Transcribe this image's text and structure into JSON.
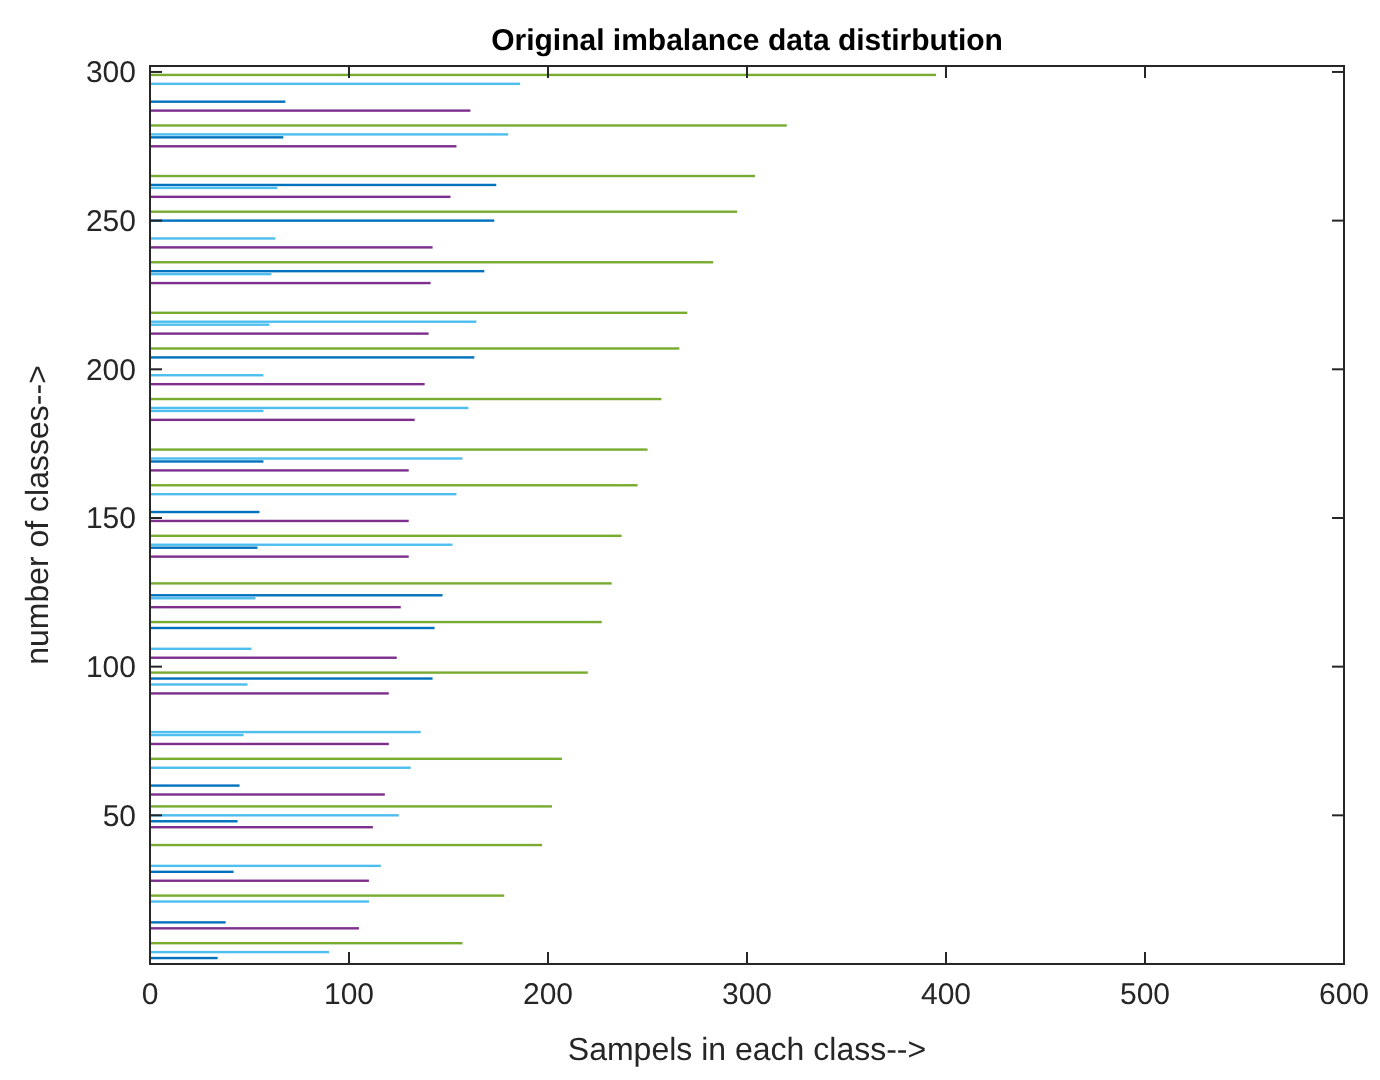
{
  "chart_data": {
    "type": "bar",
    "orientation": "horizontal",
    "title": "Original imbalance data distirbution",
    "xlabel": "Sampels in each class-->",
    "ylabel": "number of classes-->",
    "x": [
      299,
      296,
      290,
      287,
      282,
      279,
      278,
      275,
      265,
      262,
      261,
      258,
      253,
      250,
      244,
      241,
      236,
      233,
      232,
      229,
      219,
      216,
      215,
      212,
      207,
      204,
      198,
      195,
      190,
      187,
      186,
      183,
      173,
      170,
      169,
      166,
      161,
      158,
      152,
      149,
      144,
      141,
      140,
      137,
      128,
      124,
      123,
      120,
      115,
      113,
      106,
      103,
      98,
      96,
      94,
      91,
      78,
      77,
      74,
      69,
      66,
      60,
      57,
      53,
      50,
      48,
      46,
      40,
      33,
      31,
      28,
      23,
      21,
      14,
      12,
      7,
      4,
      2
    ],
    "values": [
      395,
      186,
      68,
      161,
      320,
      180,
      67,
      154,
      304,
      174,
      64,
      151,
      295,
      173,
      63,
      142,
      283,
      168,
      61,
      141,
      270,
      164,
      60,
      140,
      266,
      163,
      57,
      138,
      257,
      160,
      57,
      133,
      250,
      157,
      57,
      130,
      245,
      154,
      55,
      130,
      237,
      152,
      54,
      130,
      232,
      147,
      53,
      126,
      227,
      143,
      51,
      124,
      220,
      142,
      49,
      120,
      136,
      47,
      120,
      207,
      131,
      45,
      118,
      202,
      125,
      44,
      112,
      197,
      116,
      42,
      110,
      178,
      110,
      38,
      105,
      157,
      90,
      34
    ],
    "colors": [
      "#77ac30",
      "#4dbeee",
      "#0072bd",
      "#7e2f8e",
      "#77ac30",
      "#4dbeee",
      "#0072bd",
      "#7e2f8e",
      "#77ac30",
      "#0072bd",
      "#4dbeee",
      "#7e2f8e",
      "#77ac30",
      "#0072bd",
      "#4dbeee",
      "#7e2f8e",
      "#77ac30",
      "#0072bd",
      "#4dbeee",
      "#7e2f8e",
      "#77ac30",
      "#4dbeee",
      "#4dbeee",
      "#7e2f8e",
      "#77ac30",
      "#0072bd",
      "#4dbeee",
      "#7e2f8e",
      "#77ac30",
      "#4dbeee",
      "#4dbeee",
      "#7e2f8e",
      "#77ac30",
      "#4dbeee",
      "#0072bd",
      "#7e2f8e",
      "#77ac30",
      "#4dbeee",
      "#0072bd",
      "#7e2f8e",
      "#77ac30",
      "#4dbeee",
      "#0072bd",
      "#7e2f8e",
      "#77ac30",
      "#0072bd",
      "#4dbeee",
      "#7e2f8e",
      "#77ac30",
      "#0072bd",
      "#4dbeee",
      "#7e2f8e",
      "#77ac30",
      "#0072bd",
      "#4dbeee",
      "#7e2f8e",
      "#4dbeee",
      "#4dbeee",
      "#7e2f8e",
      "#77ac30",
      "#4dbeee",
      "#0072bd",
      "#7e2f8e",
      "#77ac30",
      "#4dbeee",
      "#0072bd",
      "#7e2f8e",
      "#77ac30",
      "#4dbeee",
      "#0072bd",
      "#7e2f8e",
      "#77ac30",
      "#4dbeee",
      "#0072bd",
      "#7e2f8e",
      "#77ac30",
      "#4dbeee",
      "#0072bd"
    ],
    "xlim": [
      0,
      600
    ],
    "xticks": [
      0,
      100,
      200,
      300,
      400,
      500,
      600
    ],
    "ylim": [
      0,
      302
    ],
    "yticks": [
      50,
      100,
      150,
      200,
      250,
      300
    ],
    "grid": false
  }
}
